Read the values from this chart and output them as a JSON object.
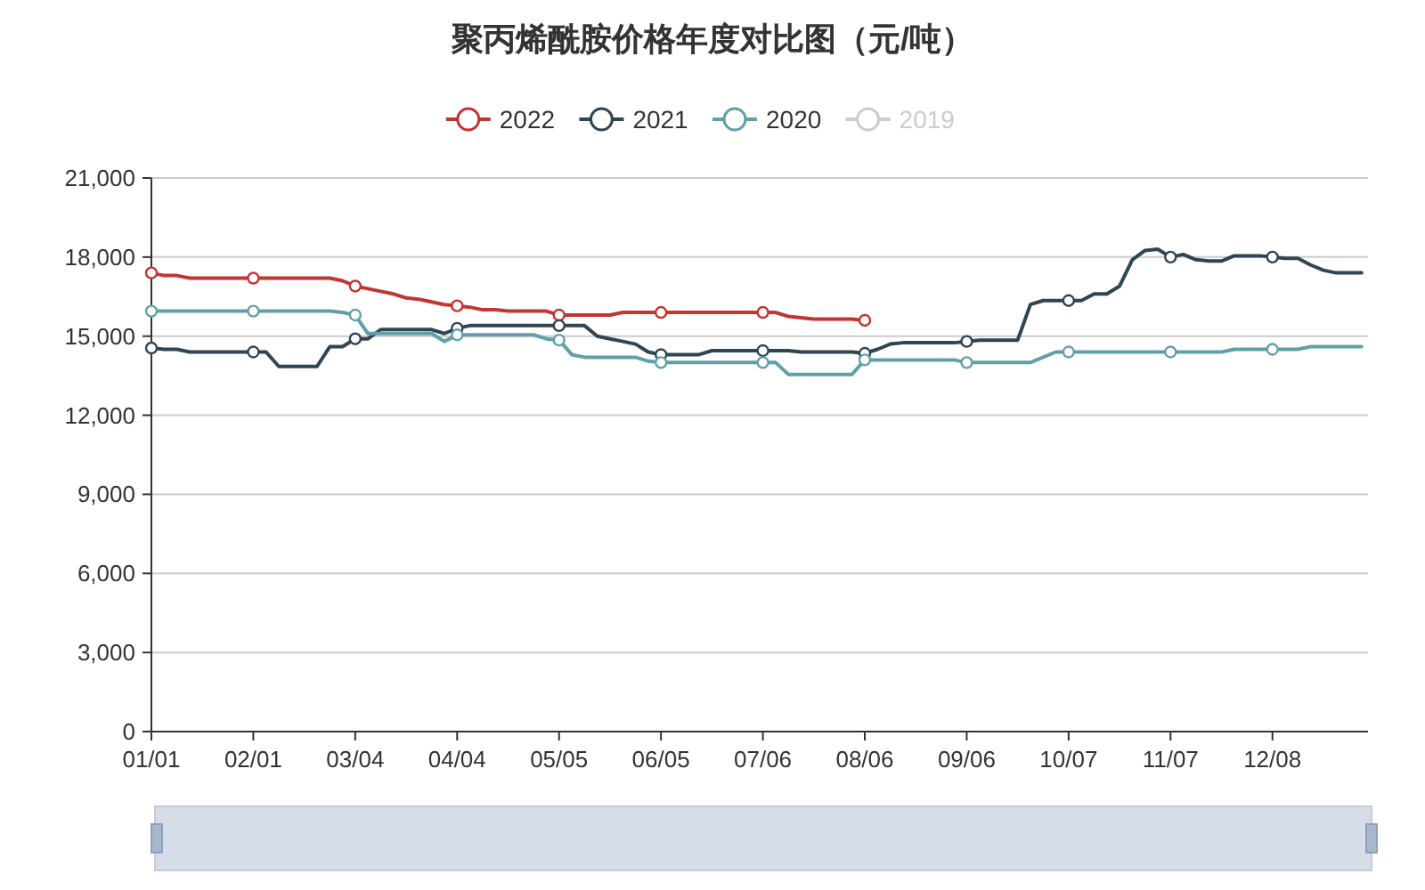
{
  "chart_data": {
    "type": "line",
    "title": "聚丙烯酰胺价格年度对比图（元/吨）",
    "categories": [
      "01/01",
      null,
      null,
      null,
      null,
      null,
      null,
      null,
      "02/01",
      null,
      null,
      null,
      null,
      null,
      null,
      null,
      "03/04",
      null,
      null,
      null,
      null,
      null,
      null,
      null,
      "04/04",
      null,
      null,
      null,
      null,
      null,
      null,
      null,
      "05/05",
      null,
      null,
      null,
      null,
      null,
      null,
      null,
      "06/05",
      null,
      null,
      null,
      null,
      null,
      null,
      null,
      "07/06",
      null,
      null,
      null,
      null,
      null,
      null,
      null,
      "08/06",
      null,
      null,
      null,
      null,
      null,
      null,
      null,
      "09/06",
      null,
      null,
      null,
      null,
      null,
      null,
      null,
      "10/07",
      null,
      null,
      null,
      null,
      null,
      null,
      null,
      "11/07",
      null,
      null,
      null,
      null,
      null,
      null,
      null,
      "12/08",
      null,
      null,
      null,
      null,
      null,
      null,
      null
    ],
    "series": [
      {
        "name": "2022",
        "color": "#c23531",
        "values": [
          17400,
          17300,
          17300,
          17200,
          17200,
          17200,
          17200,
          17200,
          17200,
          17200,
          17200,
          17200,
          17200,
          17200,
          17200,
          17100,
          16900,
          16800,
          16700,
          16600,
          16450,
          16400,
          16300,
          16200,
          16150,
          16100,
          16000,
          16000,
          15950,
          15950,
          15950,
          15950,
          15800,
          15800,
          15800,
          15800,
          15800,
          15900,
          15900,
          15900,
          15900,
          15900,
          15900,
          15900,
          15900,
          15900,
          15900,
          15900,
          15900,
          15900,
          15750,
          15700,
          15650,
          15650,
          15650,
          15650,
          15600,
          null,
          null,
          null,
          null,
          null,
          null,
          null,
          null,
          null,
          null,
          null,
          null,
          null,
          null,
          null,
          null,
          null,
          null,
          null,
          null,
          null,
          null,
          null,
          null,
          null,
          null,
          null,
          null,
          null,
          null,
          null,
          null,
          null,
          null,
          null,
          null,
          null,
          null,
          null
        ]
      },
      {
        "name": "2021",
        "color": "#2f4554",
        "values": [
          14550,
          14500,
          14500,
          14400,
          14400,
          14400,
          14400,
          14400,
          14400,
          14400,
          13850,
          13850,
          13850,
          13850,
          14600,
          14600,
          14900,
          14900,
          15250,
          15250,
          15250,
          15250,
          15250,
          15100,
          15300,
          15400,
          15400,
          15400,
          15400,
          15400,
          15400,
          15400,
          15400,
          15400,
          15400,
          15000,
          14900,
          14800,
          14700,
          14400,
          14300,
          14300,
          14300,
          14300,
          14450,
          14450,
          14450,
          14450,
          14450,
          14450,
          14450,
          14400,
          14400,
          14400,
          14400,
          14400,
          14350,
          14500,
          14700,
          14750,
          14750,
          14750,
          14750,
          14750,
          14800,
          14850,
          14850,
          14850,
          14850,
          16200,
          16350,
          16350,
          16350,
          16350,
          16600,
          16600,
          16900,
          17900,
          18250,
          18300,
          18000,
          18100,
          17900,
          17850,
          17850,
          18050,
          18050,
          18050,
          18000,
          17950,
          17950,
          17700,
          17500,
          17400,
          17400,
          17400
        ]
      },
      {
        "name": "2020",
        "color": "#61a0a8",
        "values": [
          15950,
          15950,
          15950,
          15950,
          15950,
          15950,
          15950,
          15950,
          15950,
          15950,
          15950,
          15950,
          15950,
          15950,
          15950,
          15900,
          15800,
          15100,
          15100,
          15100,
          15100,
          15100,
          15100,
          14800,
          15050,
          15050,
          15050,
          15050,
          15050,
          15050,
          15050,
          14900,
          14850,
          14300,
          14200,
          14200,
          14200,
          14200,
          14200,
          14050,
          14000,
          14000,
          14000,
          14000,
          14000,
          14000,
          14000,
          14000,
          14000,
          14000,
          13550,
          13550,
          13550,
          13550,
          13550,
          13550,
          14100,
          14100,
          14100,
          14100,
          14100,
          14100,
          14100,
          14100,
          14000,
          14000,
          14000,
          14000,
          14000,
          14000,
          14200,
          14400,
          14400,
          14400,
          14400,
          14400,
          14400,
          14400,
          14400,
          14400,
          14400,
          14400,
          14400,
          14400,
          14400,
          14500,
          14500,
          14500,
          14500,
          14500,
          14500,
          14600,
          14600,
          14600,
          14600,
          14600
        ]
      },
      {
        "type": "scatter",
        "marker": "circle",
        "color": "#c23531",
        "values": [
          17400,
          null,
          null,
          null,
          null,
          null,
          null,
          null,
          17200,
          null,
          null,
          null,
          null,
          null,
          null,
          null,
          16900,
          null,
          null,
          null,
          null,
          null,
          null,
          null,
          16150,
          null,
          null,
          null,
          null,
          null,
          null,
          null,
          15800,
          null,
          null,
          null,
          null,
          null,
          null,
          null,
          15900,
          null,
          null,
          null,
          null,
          null,
          null,
          null,
          15900,
          null,
          null,
          null,
          null,
          null,
          null,
          null,
          15600,
          null,
          null,
          null,
          null,
          null,
          null,
          null,
          null,
          null,
          null,
          null,
          null,
          null,
          null,
          null,
          null,
          null,
          null,
          null,
          null,
          null,
          null,
          null,
          null,
          null,
          null,
          null,
          null,
          null,
          null,
          null,
          null,
          null,
          null,
          null,
          null,
          null,
          null,
          null
        ]
      },
      {
        "type": "scatter",
        "marker": "circle",
        "color": "#2f4554",
        "values": [
          14550,
          null,
          null,
          null,
          null,
          null,
          null,
          null,
          14400,
          null,
          null,
          null,
          null,
          null,
          null,
          null,
          14900,
          null,
          null,
          null,
          null,
          null,
          null,
          null,
          15300,
          null,
          null,
          null,
          null,
          null,
          null,
          null,
          15400,
          null,
          null,
          null,
          null,
          null,
          null,
          null,
          14300,
          null,
          null,
          null,
          null,
          null,
          null,
          null,
          14450,
          null,
          null,
          null,
          null,
          null,
          null,
          null,
          14350,
          null,
          null,
          null,
          null,
          null,
          null,
          null,
          14800,
          null,
          null,
          null,
          null,
          null,
          null,
          null,
          16350,
          null,
          null,
          null,
          null,
          null,
          null,
          null,
          18000,
          null,
          null,
          null,
          null,
          null,
          null,
          null,
          18000,
          null,
          null,
          null,
          null,
          null,
          null,
          null
        ]
      },
      {
        "type": "scatter",
        "marker": "circle",
        "color": "#61a0a8",
        "values": [
          15950,
          null,
          null,
          null,
          null,
          null,
          null,
          null,
          15950,
          null,
          null,
          null,
          null,
          null,
          null,
          null,
          15800,
          null,
          null,
          null,
          null,
          null,
          null,
          null,
          15050,
          null,
          null,
          null,
          null,
          null,
          null,
          null,
          14850,
          null,
          null,
          null,
          null,
          null,
          null,
          null,
          14000,
          null,
          null,
          null,
          null,
          null,
          null,
          null,
          14000,
          null,
          null,
          null,
          null,
          null,
          null,
          null,
          14100,
          null,
          null,
          null,
          null,
          null,
          null,
          null,
          14000,
          null,
          null,
          null,
          null,
          null,
          null,
          null,
          14400,
          null,
          null,
          null,
          null,
          null,
          null,
          null,
          14400,
          null,
          null,
          null,
          null,
          null,
          null,
          null,
          14500,
          null,
          null,
          null,
          null,
          null,
          null,
          null
        ]
      },
      {
        "name": "2019",
        "color": "#cccccc",
        "values": [
          null,
          null,
          null,
          null,
          null,
          null,
          null,
          null,
          null,
          null,
          null,
          null,
          null,
          null,
          null,
          null,
          null,
          null,
          null,
          null,
          null,
          null,
          null,
          null,
          null,
          null,
          null,
          null,
          null,
          null,
          null,
          null,
          null,
          null,
          null,
          null,
          null,
          null,
          null,
          null,
          null,
          null,
          null,
          null,
          null,
          null,
          null,
          null,
          null,
          null,
          null,
          null,
          null,
          null,
          null,
          null,
          null,
          null,
          null,
          null,
          null,
          null,
          null,
          null,
          null,
          null,
          null,
          null,
          null,
          null,
          null,
          null,
          null,
          null,
          null,
          null,
          null,
          null,
          null,
          null,
          null,
          null,
          null,
          null,
          null,
          null,
          null,
          null,
          null,
          null,
          null,
          null,
          null,
          null,
          null,
          null
        ]
      }
    ],
    "ylim": [
      0,
      21000
    ],
    "yticks": [
      0,
      {
        "value": 3000,
        "label": "3,000"
      },
      {
        "value": 6000,
        "label": "6,000"
      },
      {
        "value": 9000,
        "label": "9,000"
      },
      {
        "value": 12000,
        "label": "12,000"
      },
      {
        "value": 15000,
        "label": "15,000"
      },
      {
        "value": 18000,
        "label": "18,000"
      },
      {
        "value": 21000,
        "label": "21,000"
      }
    ],
    "grid": "y",
    "legend": "top",
    "marker": "none"
  }
}
